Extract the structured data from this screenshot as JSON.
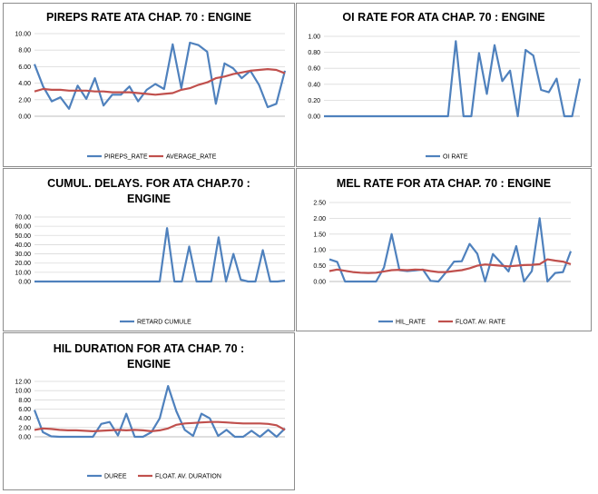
{
  "colors": {
    "blue": "#4f81bd",
    "red": "#c0504d",
    "grid": "#d9d9d9",
    "axis": "#a6a6a6"
  },
  "chart_data": [
    {
      "id": "pireps",
      "type": "line",
      "title_lines": [
        "PIREPS RATE ATA CHAP. 70 : ENGINE"
      ],
      "ylim": [
        0,
        10
      ],
      "yticks": [
        "0.00",
        "2.00",
        "4.00",
        "6.00",
        "8.00",
        "10.00"
      ],
      "legend": "bottom",
      "series": [
        {
          "name": "PIREPS_RATE",
          "color": "#4f81bd",
          "values": [
            6.3,
            3.6,
            1.8,
            2.3,
            0.9,
            3.7,
            2.1,
            4.6,
            1.3,
            2.6,
            2.6,
            3.6,
            1.8,
            3.2,
            3.9,
            3.3,
            8.7,
            3.4,
            8.9,
            8.6,
            7.8,
            1.5,
            6.4,
            5.8,
            4.6,
            5.5,
            3.8,
            1.1,
            1.5,
            5.5
          ]
        },
        {
          "name": "AVERAGE_RATE",
          "color": "#c0504d",
          "values": [
            3.0,
            3.3,
            3.2,
            3.2,
            3.1,
            3.1,
            3.1,
            3.0,
            3.0,
            2.9,
            2.9,
            2.9,
            2.8,
            2.7,
            2.6,
            2.7,
            2.8,
            3.2,
            3.4,
            3.8,
            4.1,
            4.6,
            4.8,
            5.1,
            5.3,
            5.5,
            5.6,
            5.7,
            5.6,
            5.2
          ]
        }
      ]
    },
    {
      "id": "oi",
      "type": "line",
      "title_lines": [
        "OI RATE FOR ATA CHAP. 70 : ENGINE"
      ],
      "ylim": [
        0,
        1
      ],
      "yticks": [
        "0.00",
        "0.20",
        "0.40",
        "0.60",
        "0.80",
        "1.00"
      ],
      "legend": "bottom",
      "series": [
        {
          "name": "OI RATE",
          "color": "#4f81bd",
          "values": [
            0,
            0,
            0,
            0,
            0,
            0,
            0,
            0,
            0,
            0,
            0,
            0,
            0,
            0,
            0,
            0,
            0,
            0.94,
            0,
            0,
            0.79,
            0.28,
            0.89,
            0.44,
            0.57,
            0,
            0.83,
            0.76,
            0.33,
            0.3,
            0.47,
            0,
            0,
            0.47
          ]
        }
      ]
    },
    {
      "id": "delays",
      "type": "line",
      "title_lines": [
        "CUMUL. DELAYS. FOR ATA CHAP.70 :",
        "ENGINE"
      ],
      "ylim": [
        0,
        70
      ],
      "yticks": [
        "0.00",
        "10.00",
        "20.00",
        "30.00",
        "40.00",
        "50.00",
        "60.00",
        "70.00"
      ],
      "legend": "bottom",
      "series": [
        {
          "name": "RETARD CUMULE",
          "color": "#4f81bd",
          "values": [
            0,
            0,
            0,
            0,
            0,
            0,
            0,
            0,
            0,
            0,
            0,
            0,
            0,
            0,
            0,
            0,
            0,
            0,
            58,
            0,
            0,
            38,
            0,
            0,
            0,
            48,
            0,
            30,
            2,
            0,
            0,
            34,
            0,
            0,
            1
          ]
        }
      ]
    },
    {
      "id": "mel",
      "type": "line",
      "title_lines": [
        "MEL RATE FOR ATA CHAP. 70 : ENGINE"
      ],
      "ylim": [
        0,
        2.5
      ],
      "yticks": [
        "0.00",
        "0.50",
        "1.00",
        "1.50",
        "2.00",
        "2.50"
      ],
      "legend": "bottom",
      "series": [
        {
          "name": "HIL_RATE",
          "color": "#4f81bd",
          "values": [
            0.7,
            0.62,
            0,
            0,
            0,
            0,
            0,
            0.44,
            1.5,
            0.36,
            0.33,
            0.35,
            0.38,
            0.02,
            0.0,
            0.3,
            0.63,
            0.64,
            1.19,
            0.88,
            0.0,
            0.87,
            0.6,
            0.32,
            1.12,
            0.0,
            0.33,
            2.0,
            0.0,
            0.27,
            0.3,
            0.96
          ]
        },
        {
          "name": "FLOAT. AV. RATE",
          "color": "#c0504d",
          "values": [
            0.33,
            0.38,
            0.34,
            0.3,
            0.28,
            0.27,
            0.28,
            0.32,
            0.36,
            0.37,
            0.36,
            0.38,
            0.37,
            0.33,
            0.3,
            0.3,
            0.33,
            0.36,
            0.42,
            0.5,
            0.54,
            0.52,
            0.5,
            0.48,
            0.5,
            0.52,
            0.53,
            0.55,
            0.7,
            0.66,
            0.63,
            0.55
          ]
        }
      ]
    },
    {
      "id": "hil",
      "type": "line",
      "title_lines": [
        "HIL DURATION FOR ATA CHAP. 70 :",
        "ENGINE"
      ],
      "ylim": [
        0,
        12
      ],
      "yticks": [
        "0.00",
        "2.00",
        "4.00",
        "6.00",
        "8.00",
        "10.00",
        "12.00"
      ],
      "legend": "bottom",
      "series": [
        {
          "name": "DUREE",
          "color": "#4f81bd",
          "values": [
            5.8,
            1.0,
            0.1,
            0.0,
            0.0,
            0.0,
            0.0,
            0.0,
            2.8,
            3.2,
            0.3,
            5.0,
            0.0,
            0.0,
            1.0,
            4.0,
            11.0,
            5.5,
            1.5,
            0.2,
            5.0,
            4.0,
            0.2,
            1.5,
            0.0,
            0.0,
            1.3,
            0.0,
            1.5,
            0.0,
            1.8
          ]
        },
        {
          "name": "FLOAT. AV. DURATION",
          "color": "#c0504d",
          "values": [
            1.5,
            1.8,
            1.7,
            1.5,
            1.4,
            1.4,
            1.3,
            1.2,
            1.3,
            1.4,
            1.5,
            1.4,
            1.5,
            1.4,
            1.2,
            1.4,
            1.8,
            2.6,
            2.9,
            3.0,
            3.1,
            3.2,
            3.2,
            3.1,
            3.0,
            2.9,
            2.9,
            2.9,
            2.8,
            2.5,
            1.5
          ]
        }
      ]
    }
  ]
}
